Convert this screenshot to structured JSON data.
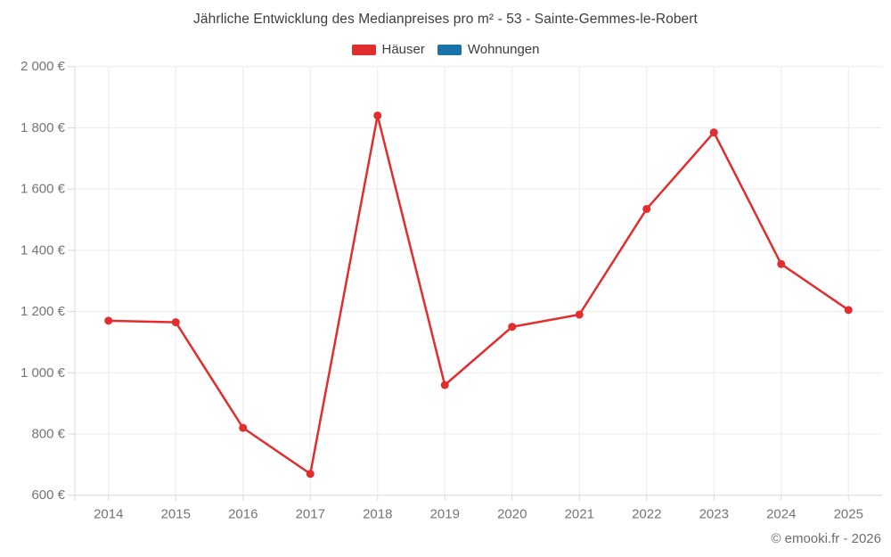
{
  "chart_data": {
    "type": "line",
    "title": "Jährliche Entwicklung des Medianpreises pro m² - 53 - Sainte-Gemmes-le-Robert",
    "categories": [
      "2014",
      "2015",
      "2016",
      "2017",
      "2018",
      "2019",
      "2020",
      "2021",
      "2022",
      "2023",
      "2024",
      "2025"
    ],
    "series": [
      {
        "name": "Häuser",
        "color": "#e12d2d",
        "values": [
          1170,
          1165,
          820,
          670,
          1840,
          960,
          1150,
          1190,
          1535,
          1785,
          1355,
          1205
        ]
      },
      {
        "name": "Wohnungen",
        "color": "#1a73a8",
        "values": []
      }
    ],
    "ylabel": "",
    "xlabel": "",
    "ylim": [
      600,
      2000
    ],
    "y_tick_step": 200,
    "y_tick_labels": [
      "600 €",
      "800 €",
      "1 000 €",
      "1 200 €",
      "1 400 €",
      "1 600 €",
      "1 800 €",
      "2 000 €"
    ],
    "grid": true,
    "legend_position": "top",
    "colors": {
      "grid": "#ececec",
      "axis": "#d9d9d9",
      "axis_text": "#757575",
      "title_text": "#3d3d3d"
    }
  },
  "footer": {
    "credit": "© emooki.fr - 2026"
  }
}
